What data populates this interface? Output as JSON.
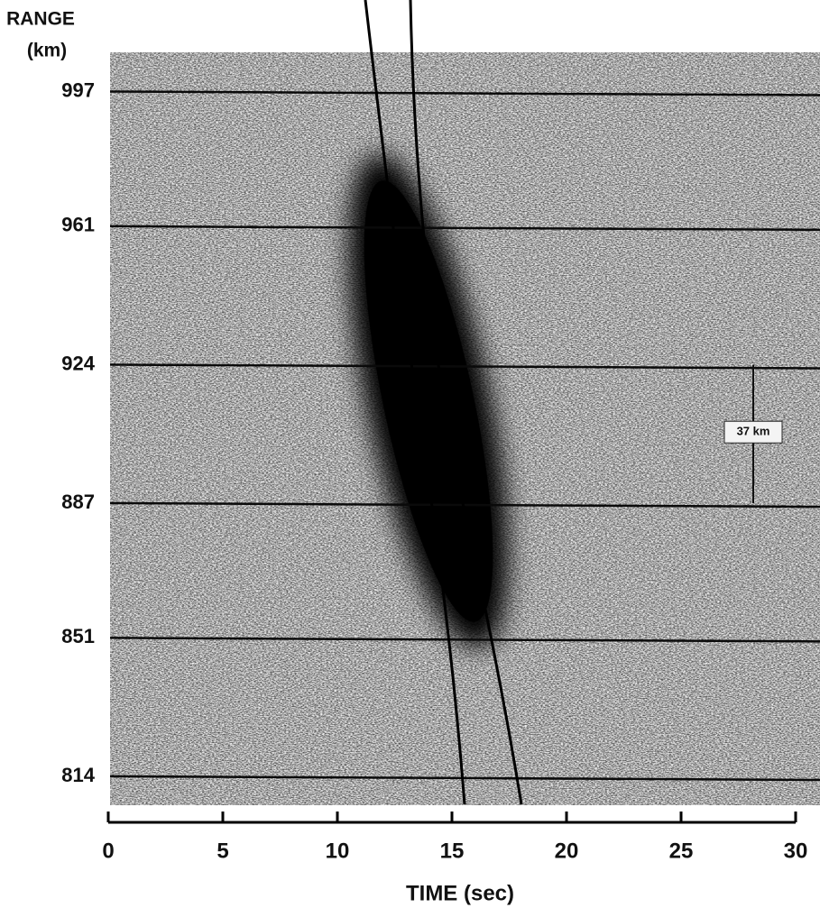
{
  "chart_data": {
    "type": "image",
    "ylabel": [
      "RANGE",
      "(km)"
    ],
    "xlabel": "TIME (sec)",
    "xlim": [
      0,
      30
    ],
    "xticks": [
      0,
      5,
      10,
      15,
      20,
      25,
      30
    ],
    "ylim": [
      807,
      1007
    ],
    "yticks": [
      814,
      851,
      887,
      924,
      961,
      997
    ],
    "grid": true,
    "annotation": "37 km"
  }
}
